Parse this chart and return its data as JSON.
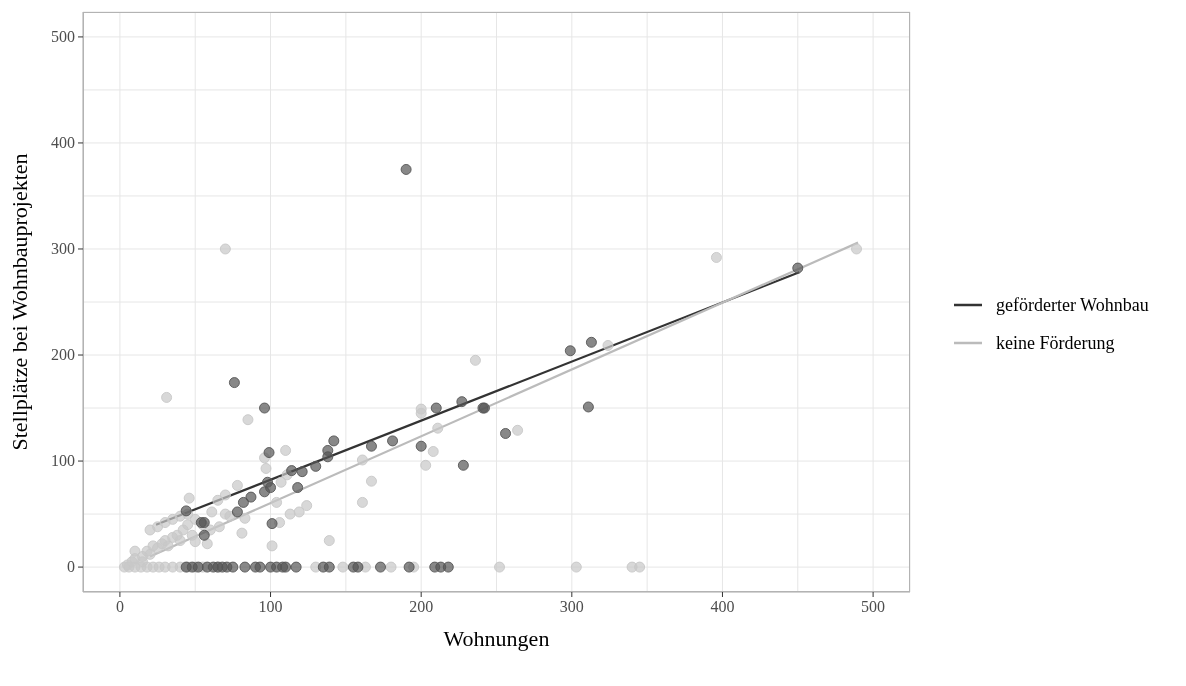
{
  "chart_data": {
    "type": "scatter",
    "xlabel": "Wohnungen",
    "ylabel": "Stellplätze bei Wohnbauprojekten",
    "xlim": [
      -24.5,
      524.5
    ],
    "ylim": [
      -23.5,
      523.5
    ],
    "xticks": [
      0,
      {
        "value": 50,
        "label": null
      },
      100,
      {
        "value": 150,
        "label": null
      },
      200,
      {
        "value": 250,
        "label": null
      },
      300,
      {
        "value": 350,
        "label": null
      },
      400,
      {
        "value": 450,
        "label": null
      },
      500
    ],
    "yticks": [
      0,
      {
        "value": 50,
        "label": null
      },
      100,
      {
        "value": 150,
        "label": null
      },
      200,
      {
        "value": 250,
        "label": null
      },
      300,
      {
        "value": 350,
        "label": null
      },
      400,
      {
        "value": 450,
        "label": null
      },
      500
    ],
    "grid": true,
    "legend": "right",
    "marker": "circle",
    "series": [
      {
        "color": "#c8c8c8",
        "x": [
          70,
          31,
          396,
          489,
          236,
          200,
          200,
          264,
          211,
          208,
          203,
          324,
          161,
          167,
          161,
          139,
          110,
          111,
          107,
          104,
          113,
          119,
          124,
          85,
          78,
          83,
          81,
          101,
          96,
          97,
          106,
          70,
          65,
          46,
          5,
          8,
          10,
          15,
          18,
          20,
          22,
          25,
          28,
          30,
          32,
          35,
          38,
          40,
          42,
          45,
          48,
          20,
          25,
          30,
          35,
          40,
          45,
          50,
          55,
          60,
          15,
          10,
          3,
          6,
          10,
          14,
          18,
          22,
          26,
          30,
          35,
          40,
          45,
          50,
          55,
          65,
          130,
          148,
          163,
          180,
          195,
          252,
          303,
          340,
          345,
          61,
          58,
          50,
          66,
          70,
          73
        ],
        "values": [
          300,
          160,
          292,
          300,
          195,
          149,
          145,
          129,
          131,
          109,
          96,
          209,
          101,
          81,
          61,
          25,
          110,
          87,
          80,
          61,
          50,
          52,
          58,
          139,
          77,
          46,
          32,
          20,
          103,
          93,
          42,
          68,
          63,
          65,
          2,
          5,
          8,
          10,
          15,
          12,
          20,
          18,
          22,
          25,
          20,
          28,
          30,
          25,
          35,
          40,
          30,
          35,
          38,
          42,
          45,
          48,
          50,
          45,
          40,
          35,
          5,
          15,
          0,
          0,
          0,
          0,
          0,
          0,
          0,
          0,
          0,
          0,
          0,
          0,
          0,
          0,
          0,
          0,
          0,
          0,
          0,
          0,
          0,
          0,
          0,
          52,
          22,
          24,
          38,
          50,
          48
        ]
      },
      {
        "color": "#555555",
        "x": [
          190,
          76,
          96,
          99,
          98,
          100,
          96,
          101,
          87,
          82,
          78,
          44,
          56,
          54,
          56,
          114,
          121,
          118,
          130,
          138,
          138,
          142,
          167,
          181,
          200,
          210,
          227,
          242,
          241,
          228,
          256,
          299,
          313,
          311,
          450,
          44,
          48,
          52,
          58,
          62,
          65,
          68,
          71,
          75,
          83,
          90,
          93,
          100,
          104,
          108,
          110,
          117,
          135,
          139,
          155,
          158,
          173,
          192,
          209,
          213,
          218
        ],
        "values": [
          375,
          174,
          150,
          108,
          80,
          75,
          71,
          41,
          66,
          61,
          52,
          53,
          42,
          42,
          30,
          91,
          90,
          75,
          95,
          104,
          110,
          119,
          114,
          119,
          114,
          150,
          156,
          150,
          150,
          96,
          126,
          204,
          212,
          151,
          282,
          0,
          0,
          0,
          0,
          0,
          0,
          0,
          0,
          0,
          0,
          0,
          0,
          0,
          0,
          0,
          0,
          0,
          0,
          0,
          0,
          0,
          0,
          0,
          0,
          0,
          0
        ]
      },
      {
        "type": "line",
        "marker": "none",
        "name": "geförderter Wohnbau",
        "color": "#333333",
        "line_style": "solid",
        "x": [
          24,
          451
        ],
        "values": [
          40,
          278
        ]
      },
      {
        "type": "line",
        "marker": "none",
        "name": "keine Förderung",
        "color": "#bbbbbb",
        "line_style": "solid",
        "x": [
          20,
          490
        ],
        "values": [
          10,
          306
        ]
      }
    ]
  }
}
